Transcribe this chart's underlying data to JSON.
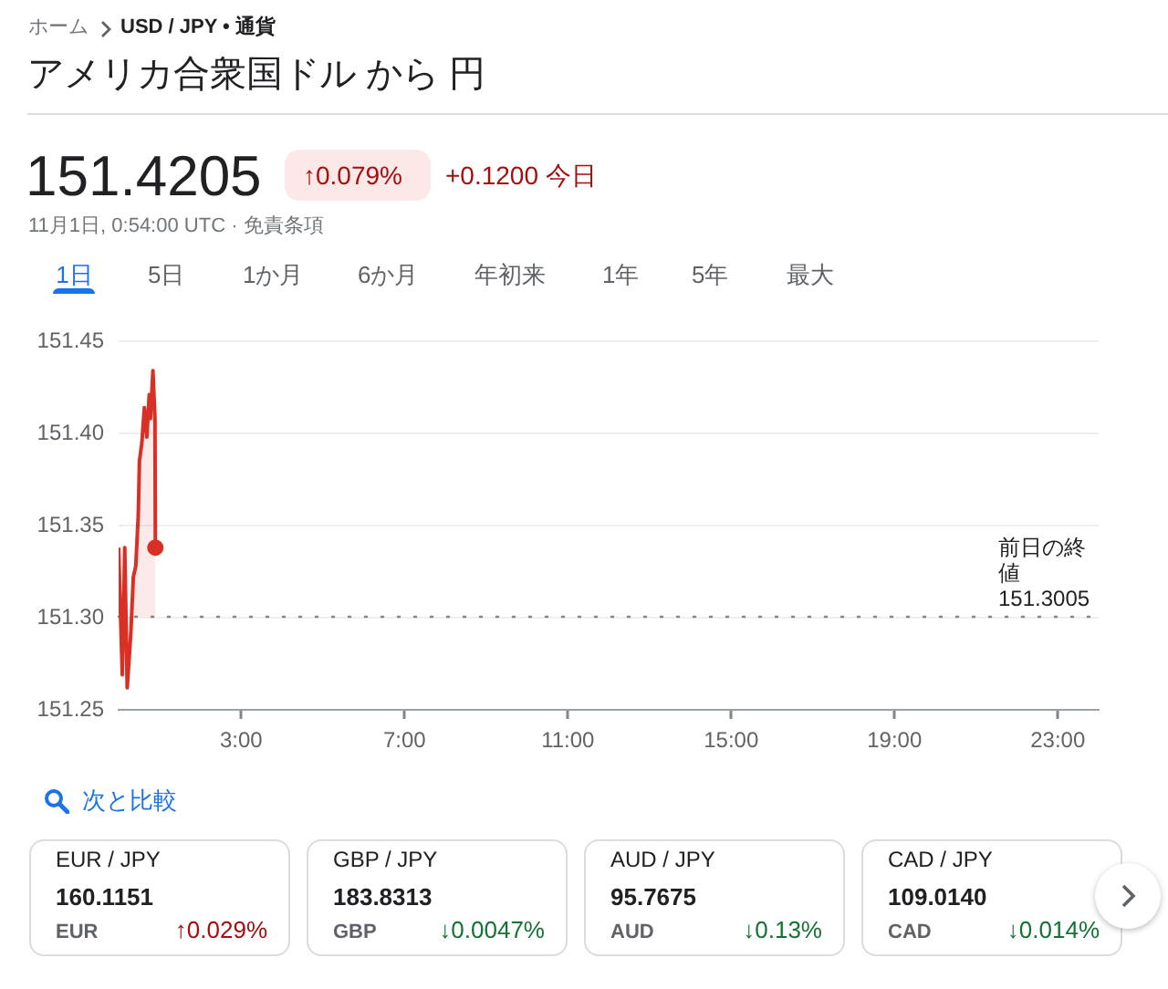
{
  "chart_data": {
    "type": "area",
    "title": "アメリカ合衆国ドル から 円",
    "subtitle": "151.4205",
    "annotations": [
      "ホーム",
      "USD / JPY • 通貨",
      "↑0.079%",
      "+0.1200 今日",
      "11月1日, 0:54:00 UTC · 免責条項",
      "1日",
      "5日",
      "1か月",
      "6か月",
      "年初来",
      "1年",
      "5年",
      "最大",
      "次と比較",
      "EUR / JPY",
      "160.1151",
      "EUR",
      "↑0.029%",
      "GBP / JPY",
      "183.8313",
      "GBP",
      "↓0.0047%",
      "AUD / JPY",
      "95.7675",
      "AUD",
      "↓0.13%",
      "CAD / JPY",
      "109.0140",
      "CAD",
      "↓0.014%"
    ],
    "xlim": [
      0,
      24
    ],
    "xticks": [
      {
        "value": 3,
        "label": "3:00"
      },
      {
        "value": 7,
        "label": "7:00"
      },
      {
        "value": 11,
        "label": "11:00"
      },
      {
        "value": 15,
        "label": "15:00"
      },
      {
        "value": 19,
        "label": "19:00"
      },
      {
        "value": 23,
        "label": "23:00"
      }
    ],
    "ylim": [
      151.25,
      151.45
    ],
    "yticks": [
      151.25,
      {
        "value": 151.3,
        "label": "151.30"
      },
      151.35,
      {
        "value": 151.4,
        "label": "151.40"
      },
      151.45
    ],
    "series": [
      {
        "color": "#d93025",
        "x": [
          0,
          0.09,
          0.15,
          0.21,
          0.3,
          0.36,
          0.42,
          0.48,
          0.51,
          0.57,
          0.63,
          0.69,
          0.75,
          0.78,
          0.84,
          0.89,
          0.9
        ],
        "values": [
          151.338,
          151.269,
          151.338,
          151.262,
          151.292,
          151.322,
          151.328,
          151.355,
          151.385,
          151.395,
          151.414,
          151.398,
          151.421,
          151.408,
          151.434,
          151.408,
          151.338
        ]
      },
      {
        "type": "scatter",
        "color": "#d93025",
        "marker": "circle",
        "x": [
          0.9
        ],
        "values": [
          151.338
        ]
      }
    ],
    "ref_lines": [
      {
        "axis": "y",
        "value": 151.3005,
        "label": "前日の終値 151.3005",
        "color": "#80868b",
        "line_style": "dotted"
      }
    ],
    "grid": "y"
  }
}
